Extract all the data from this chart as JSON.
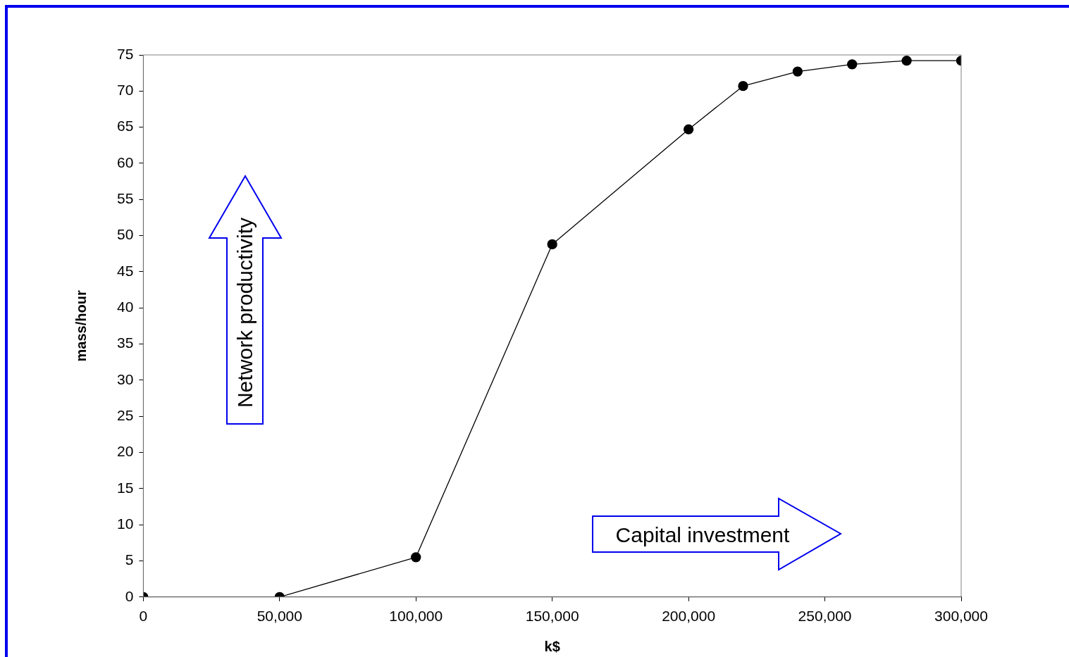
{
  "chart_data": {
    "type": "line",
    "xlabel": "k$",
    "ylabel": "mass/hour",
    "x": [
      0,
      50000,
      100000,
      150000,
      200000,
      220000,
      240000,
      260000,
      280000,
      300000
    ],
    "series": [
      {
        "color": "#000000",
        "values": [
          0,
          0,
          5.5,
          48.8,
          64.7,
          70.7,
          72.7,
          73.7,
          74.2,
          74.2
        ]
      }
    ],
    "xlim": [
      0,
      300000
    ],
    "xticks": [
      {
        "value": 0,
        "label": "0"
      },
      {
        "value": 50000,
        "label": "50,000"
      },
      {
        "value": 100000,
        "label": "100,000"
      },
      {
        "value": 150000,
        "label": "150,000"
      },
      {
        "value": 200000,
        "label": "200,000"
      },
      {
        "value": 250000,
        "label": "250,000"
      },
      {
        "value": 300000,
        "label": "300,000"
      }
    ],
    "ylim": [
      0,
      75
    ],
    "yticks": [
      0,
      5,
      10,
      15,
      20,
      25,
      30,
      35,
      40,
      45,
      50,
      55,
      60,
      65,
      70,
      75
    ],
    "grid": false,
    "legend": false,
    "marker": "circle",
    "line_style": "solid",
    "annotations": [
      "Network productivity",
      "Capital investment"
    ]
  }
}
